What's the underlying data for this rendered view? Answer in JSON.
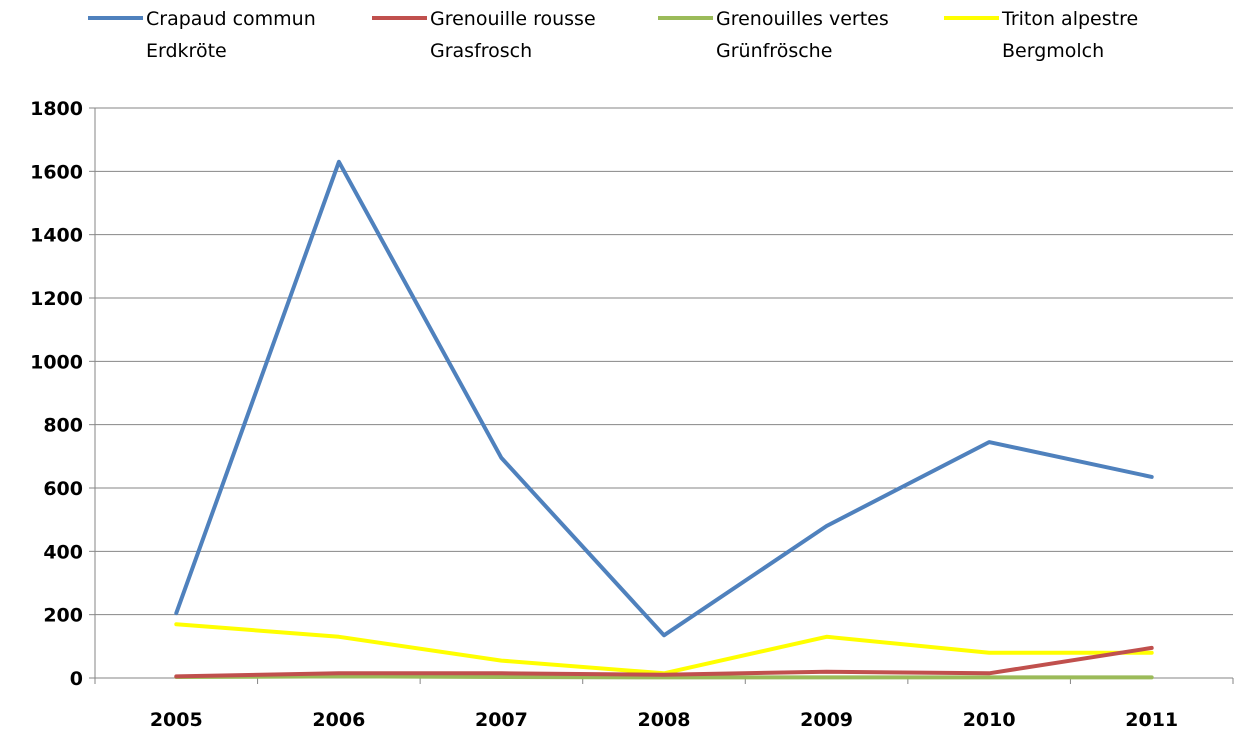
{
  "chart_data": {
    "type": "line",
    "title": "",
    "xlabel": "",
    "ylabel": "",
    "categories": [
      "2005",
      "2006",
      "2007",
      "2008",
      "2009",
      "2010",
      "2011"
    ],
    "ylim": [
      0,
      1800
    ],
    "yticks": [
      "0",
      "200",
      "400",
      "600",
      "800",
      "1000",
      "1200",
      "1400",
      "1600",
      "1800"
    ],
    "grid": true,
    "legend_position": "top",
    "series": [
      {
        "name": "Crapaud commun Erdkröte",
        "name_lines": [
          "Crapaud commun",
          "Erdkröte"
        ],
        "color": "#4f81bd",
        "values": [
          205,
          1630,
          695,
          135,
          480,
          745,
          635
        ]
      },
      {
        "name": "Grenouille rousse Grasfrosch",
        "name_lines": [
          "Grenouille rousse",
          "Grasfrosch"
        ],
        "color": "#c0504d",
        "values": [
          5,
          15,
          15,
          10,
          20,
          15,
          95
        ]
      },
      {
        "name": "Grenouilles vertes Grünfrösche",
        "name_lines": [
          "Grenouilles vertes",
          "Grünfrösche"
        ],
        "color": "#9bbb59",
        "values": [
          3,
          5,
          3,
          2,
          2,
          2,
          2
        ]
      },
      {
        "name": "Triton alpestre Bergmolch",
        "name_lines": [
          "Triton alpestre",
          "Bergmolch"
        ],
        "color": "#ffff00",
        "values": [
          170,
          130,
          55,
          15,
          130,
          80,
          80
        ]
      }
    ]
  }
}
